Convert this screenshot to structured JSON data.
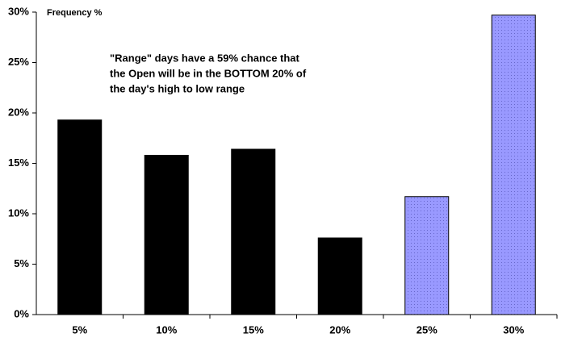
{
  "chart_data": {
    "type": "bar",
    "y_axis_label": "Frequency %",
    "annotation": [
      "\"Range\" days have a 59% chance that",
      "the Open will be in the BOTTOM 20% of",
      "the day's high to low range"
    ],
    "categories": [
      "5%",
      "10%",
      "15%",
      "20%",
      "25%",
      "30%"
    ],
    "values": [
      19.3,
      15.8,
      16.4,
      7.6,
      11.7,
      29.7
    ],
    "colors": [
      "#000000",
      "#000000",
      "#000000",
      "#000000",
      "#9999ff",
      "#9999ff"
    ],
    "ylim": [
      0,
      30
    ],
    "yticks": [
      {
        "value": 0,
        "label": "0%"
      },
      {
        "value": 5,
        "label": "5%"
      },
      {
        "value": 10,
        "label": "10%"
      },
      {
        "value": 15,
        "label": "15%"
      },
      {
        "value": 20,
        "label": "20%"
      },
      {
        "value": 25,
        "label": "25%"
      },
      {
        "value": 30,
        "label": "30%"
      }
    ],
    "grid": false
  }
}
